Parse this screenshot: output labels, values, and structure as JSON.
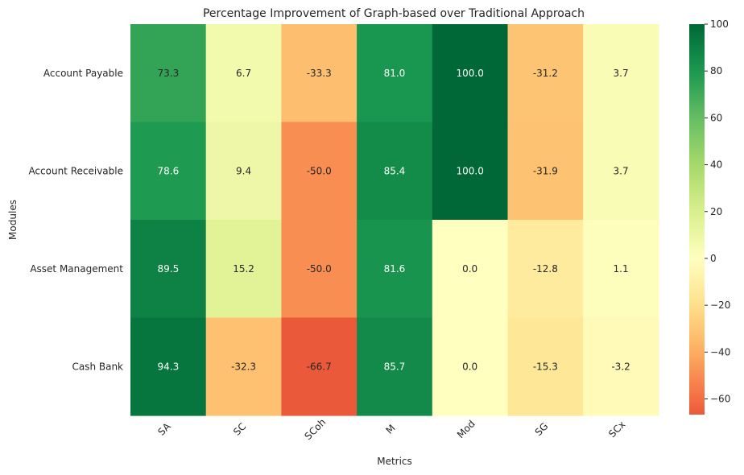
{
  "chart_data": {
    "type": "heatmap",
    "title": "Percentage Improvement of Graph-based over Traditional Approach",
    "xlabel": "Metrics",
    "ylabel": "Modules",
    "x_categories": [
      "SA",
      "SC",
      "SCoh",
      "M",
      "Mod",
      "SG",
      "SCx"
    ],
    "y_categories": [
      "Account Payable",
      "Account Receivable",
      "Asset Management",
      "Cash Bank"
    ],
    "values": [
      [
        73.3,
        6.7,
        -33.3,
        81.0,
        100.0,
        -31.2,
        3.7
      ],
      [
        78.6,
        9.4,
        -50.0,
        85.4,
        100.0,
        -31.9,
        3.7
      ],
      [
        89.5,
        15.2,
        -50.0,
        81.6,
        0.0,
        -12.8,
        1.1
      ],
      [
        94.3,
        -32.3,
        -66.7,
        85.7,
        0.0,
        -15.3,
        -3.2
      ]
    ],
    "value_labels": [
      [
        "73.3",
        "6.7",
        "-33.3",
        "81.0",
        "100.0",
        "-31.2",
        "3.7"
      ],
      [
        "78.6",
        "9.4",
        "-50.0",
        "85.4",
        "100.0",
        "-31.9",
        "3.7"
      ],
      [
        "89.5",
        "15.2",
        "-50.0",
        "81.6",
        "0.0",
        "-12.8",
        "1.1"
      ],
      [
        "94.3",
        "-32.3",
        "-66.7",
        "85.7",
        "0.0",
        "-15.3",
        "-3.2"
      ]
    ],
    "colormap": "RdYlGn",
    "center": 0,
    "colorbar": {
      "range": [
        -66.7,
        100
      ],
      "ticks": [
        100,
        80,
        60,
        40,
        20,
        0,
        -20,
        -40,
        -60
      ],
      "tick_labels": [
        "100",
        "80",
        "60",
        "40",
        "20",
        "0",
        "−20",
        "−40",
        "−60"
      ]
    },
    "grid": false,
    "legend": "colorbar-right"
  }
}
